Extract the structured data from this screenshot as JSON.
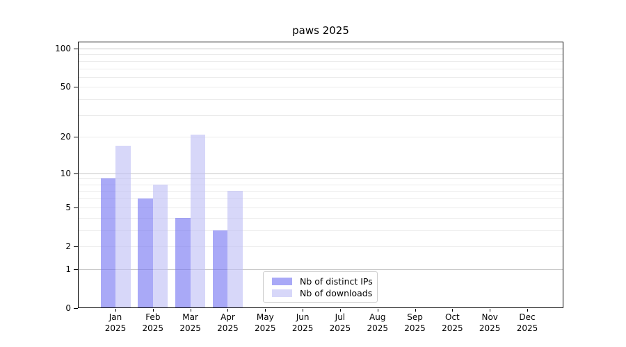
{
  "chart_data": {
    "type": "bar",
    "title": "paws 2025",
    "categories": [
      "Jan 2025",
      "Feb 2025",
      "Mar 2025",
      "Apr 2025",
      "May 2025",
      "Jun 2025",
      "Jul 2025",
      "Aug 2025",
      "Sep 2025",
      "Oct 2025",
      "Nov 2025",
      "Dec 2025"
    ],
    "series": [
      {
        "name": "Nb of distinct IPs",
        "color": "rgba(116,116,242,0.62)",
        "values": [
          9,
          6,
          4,
          3,
          0,
          0,
          0,
          0,
          0,
          0,
          0,
          0
        ]
      },
      {
        "name": "Nb of downloads",
        "color": "rgba(190,190,245,0.62)",
        "values": [
          17,
          8,
          21,
          7,
          0,
          0,
          0,
          0,
          0,
          0,
          0,
          0
        ]
      }
    ],
    "yscale": "log10(1+value)",
    "ylim": [
      0,
      112
    ],
    "ytick_values": [
      0,
      1,
      2,
      5,
      10,
      20,
      50,
      100
    ],
    "ytick_labels": [
      "0",
      "1",
      "2",
      "5",
      "10",
      "20",
      "50",
      "100"
    ],
    "grid": {
      "major_values": [
        1,
        10,
        100
      ],
      "minor_values": [
        2,
        3,
        4,
        5,
        6,
        7,
        8,
        9,
        20,
        30,
        40,
        50,
        60,
        70,
        80,
        90
      ],
      "major_color": "#c6c6c6",
      "minor_color": "#ebebeb"
    },
    "legend": {
      "entries": [
        "Nb of distinct IPs",
        "Nb of downloads"
      ],
      "position": "lower center"
    }
  },
  "colors": {
    "background": "#ffffff",
    "spine": "#000000",
    "text": "#000000",
    "legend_border": "#cccccc"
  }
}
